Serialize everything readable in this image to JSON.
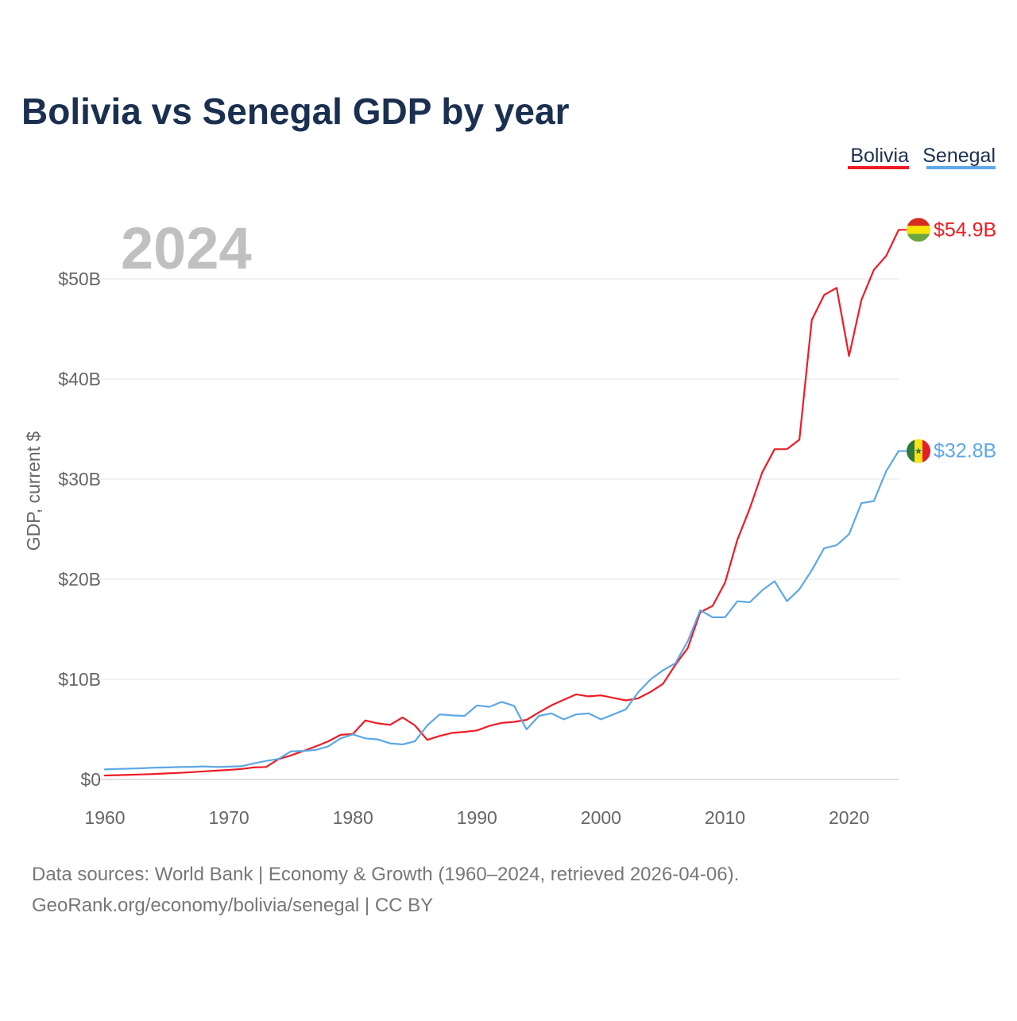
{
  "chart_data": {
    "type": "line",
    "title": "Bolivia vs Senegal GDP by year",
    "ylabel": "GDP, current $",
    "xlabel": "",
    "year_label": "2024",
    "xlim": [
      1960,
      2024
    ],
    "ylim": [
      0,
      50000000000
    ],
    "x_ticks": [
      1960,
      1970,
      1980,
      1990,
      2000,
      2010,
      2020
    ],
    "x_tick_labels": [
      "1960",
      "1970",
      "1980",
      "1990",
      "2000",
      "2010",
      "2020"
    ],
    "y_ticks": [
      0,
      10000000000,
      20000000000,
      30000000000,
      40000000000,
      50000000000
    ],
    "y_tick_labels": [
      "$0",
      "$10B",
      "$20B",
      "$30B",
      "$40B",
      "$50B"
    ],
    "grid": true,
    "legend": "top-right",
    "x": [
      1960,
      1961,
      1962,
      1963,
      1964,
      1965,
      1966,
      1967,
      1968,
      1969,
      1970,
      1971,
      1972,
      1973,
      1974,
      1975,
      1976,
      1977,
      1978,
      1979,
      1980,
      1981,
      1982,
      1983,
      1984,
      1985,
      1986,
      1987,
      1988,
      1989,
      1990,
      1991,
      1992,
      1993,
      1994,
      1995,
      1996,
      1997,
      1998,
      1999,
      2000,
      2001,
      2002,
      2003,
      2004,
      2005,
      2006,
      2007,
      2008,
      2009,
      2010,
      2011,
      2012,
      2013,
      2014,
      2015,
      2016,
      2017,
      2018,
      2019,
      2020,
      2021,
      2022,
      2023,
      2024
    ],
    "series": [
      {
        "name": "Bolivia",
        "color": "#ee1c25",
        "end_label": "$54.9B",
        "flag": "bolivia-flag",
        "values": [
          0.4,
          0.43,
          0.47,
          0.5,
          0.55,
          0.6,
          0.66,
          0.73,
          0.81,
          0.88,
          0.95,
          1.05,
          1.2,
          1.25,
          2.02,
          2.4,
          2.85,
          3.3,
          3.8,
          4.45,
          4.55,
          5.9,
          5.6,
          5.45,
          6.2,
          5.4,
          3.95,
          4.35,
          4.65,
          4.75,
          4.9,
          5.35,
          5.65,
          5.75,
          5.95,
          6.7,
          7.4,
          7.95,
          8.5,
          8.3,
          8.4,
          8.15,
          7.9,
          8.1,
          8.75,
          9.55,
          11.45,
          13.12,
          16.7,
          17.34,
          19.65,
          23.95,
          27.08,
          30.66,
          32.99,
          33.0,
          33.94,
          45.9,
          48.4,
          49.1,
          42.3,
          47.9,
          50.9,
          52.3,
          54.9
        ]
      },
      {
        "name": "Senegal",
        "color": "#5da8e6",
        "end_label": "$32.8B",
        "flag": "senegal-flag",
        "values": [
          1.0,
          1.05,
          1.08,
          1.12,
          1.18,
          1.2,
          1.24,
          1.26,
          1.3,
          1.25,
          1.28,
          1.32,
          1.6,
          1.85,
          2.05,
          2.8,
          2.85,
          2.95,
          3.3,
          4.1,
          4.5,
          4.1,
          4.0,
          3.6,
          3.5,
          3.8,
          5.4,
          6.5,
          6.4,
          6.35,
          7.4,
          7.25,
          7.75,
          7.35,
          5.0,
          6.35,
          6.6,
          6.0,
          6.5,
          6.6,
          6.0,
          6.5,
          7.0,
          8.7,
          10.0,
          10.9,
          11.6,
          13.8,
          16.9,
          16.2,
          16.2,
          17.8,
          17.7,
          18.9,
          19.8,
          17.8,
          19.0,
          20.9,
          23.1,
          23.4,
          24.5,
          27.6,
          27.8,
          30.8,
          32.8
        ]
      }
    ]
  },
  "footer": {
    "line1": "Data sources: World Bank | Economy & Growth (1960–2024, retrieved 2026-04-06).",
    "line2": "GeoRank.org/economy/bolivia/senegal | CC BY"
  }
}
